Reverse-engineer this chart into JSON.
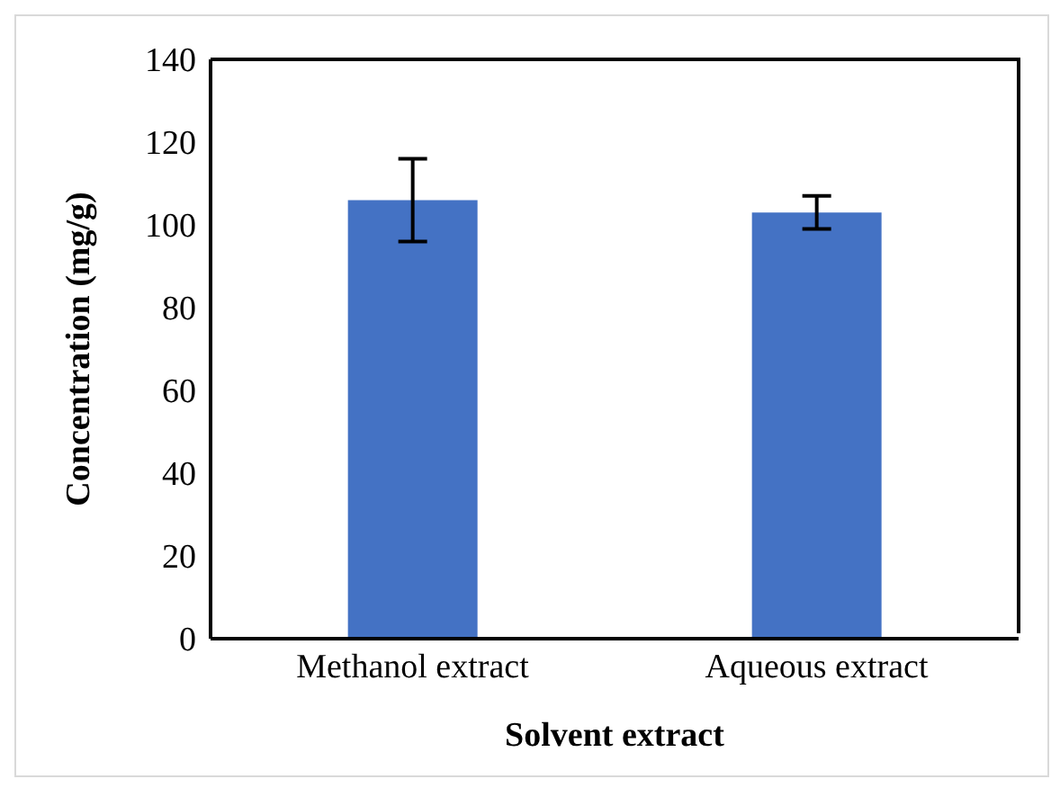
{
  "chart_data": {
    "type": "bar",
    "xlabel": "Solvent extract",
    "ylabel": "Concentration (mg/g)",
    "categories": [
      "Methanol extract",
      "Aqueous extract"
    ],
    "values": [
      106,
      103
    ],
    "errors": [
      10,
      4
    ],
    "color": "#4472c4",
    "ylim": [
      0,
      140
    ],
    "yticks": [
      0,
      20,
      40,
      60,
      80,
      100,
      120,
      140
    ],
    "grid": false,
    "legend": false
  }
}
